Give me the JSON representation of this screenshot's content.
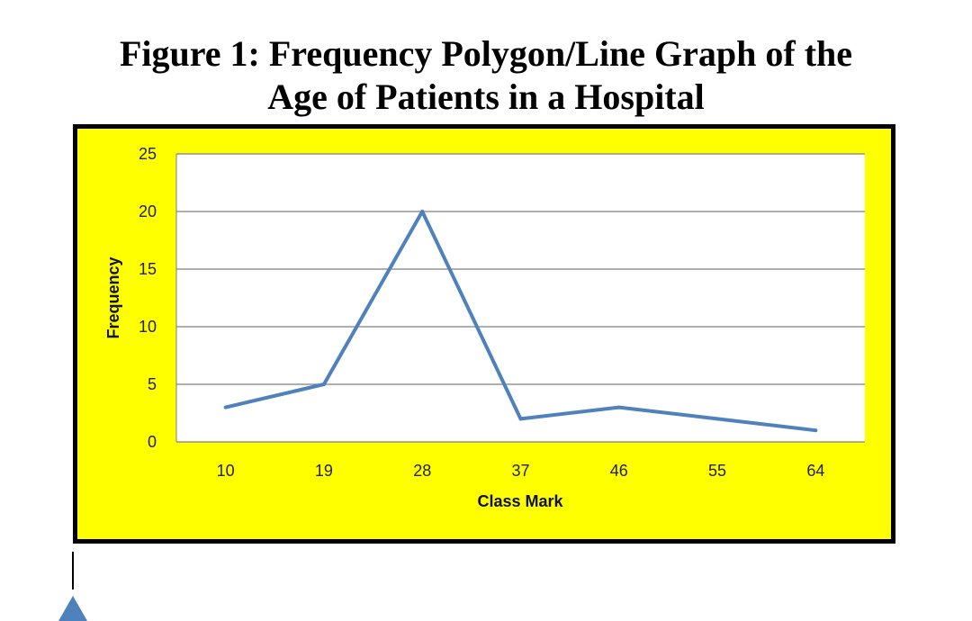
{
  "figure": {
    "title_line1": "Figure 1: Frequency Polygon/Line Graph of the",
    "title_line2": "Age of Patients in a Hospital"
  },
  "colors": {
    "chart_background": "#ffff00",
    "frame_border": "#000000",
    "plot_background": "#ffffff",
    "gridline": "#7f7f7f",
    "series_line": "#4f81bd"
  },
  "chart_data": {
    "type": "line",
    "title": "Figure 1: Frequency Polygon/Line Graph of the Age of Patients in a Hospital",
    "xlabel": "Class Mark",
    "ylabel": "Frequency",
    "categories": [
      "10",
      "19",
      "28",
      "37",
      "46",
      "55",
      "64"
    ],
    "values": [
      3,
      5,
      20,
      2,
      3,
      2,
      1
    ],
    "y_ticks": [
      0,
      5,
      10,
      15,
      20,
      25
    ],
    "ylim": [
      0,
      25
    ],
    "grid": true,
    "legend": "none"
  }
}
